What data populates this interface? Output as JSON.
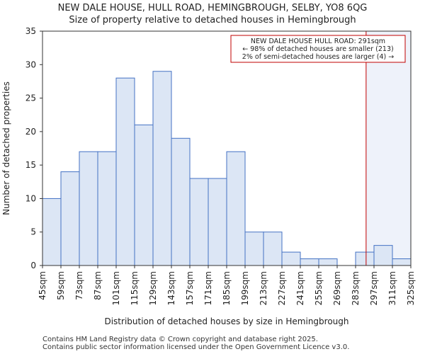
{
  "title": "NEW DALE HOUSE, HULL ROAD, HEMINGBROUGH, SELBY, YO8 6QG",
  "subtitle": "Size of property relative to detached houses in Hemingbrough",
  "footer": {
    "line1": "Contains HM Land Registry data © Crown copyright and database right 2025.",
    "line2": "Contains public sector information licensed under the Open Government Licence v3.0."
  },
  "annotation": {
    "line1": "NEW DALE HOUSE HULL ROAD: 291sqm",
    "line2": "← 98% of detached houses are smaller (213)",
    "line3": "2% of semi-detached houses are larger (4) →"
  },
  "colors": {
    "bar_fill": "#dce6f5",
    "bar_edge": "#4472c4",
    "marker": "#c00000",
    "shade": "#eef2fa"
  },
  "chart_data": {
    "type": "bar",
    "title": "NEW DALE HOUSE, HULL ROAD, HEMINGBROUGH, SELBY, YO8 6QG",
    "subtitle": "Size of property relative to detached houses in Hemingbrough",
    "xlabel": "Distribution of detached houses by size in Hemingbrough",
    "ylabel": "Number of detached properties",
    "bin_edges": [
      45,
      59,
      73,
      87,
      101,
      115,
      129,
      143,
      157,
      171,
      185,
      199,
      213,
      227,
      241,
      255,
      269,
      283,
      297,
      311,
      325
    ],
    "tick_labels": [
      "45sqm",
      "59sqm",
      "73sqm",
      "87sqm",
      "101sqm",
      "115sqm",
      "129sqm",
      "143sqm",
      "157sqm",
      "171sqm",
      "185sqm",
      "199sqm",
      "213sqm",
      "227sqm",
      "241sqm",
      "255sqm",
      "269sqm",
      "283sqm",
      "297sqm",
      "311sqm",
      "325sqm"
    ],
    "values": [
      10,
      14,
      17,
      17,
      28,
      21,
      29,
      19,
      13,
      13,
      17,
      5,
      5,
      2,
      1,
      1,
      0,
      2,
      3,
      1
    ],
    "ylim": [
      0,
      35
    ],
    "yticks": [
      0,
      5,
      10,
      15,
      20,
      25,
      30,
      35
    ],
    "marker_value": 291,
    "grid": false
  }
}
